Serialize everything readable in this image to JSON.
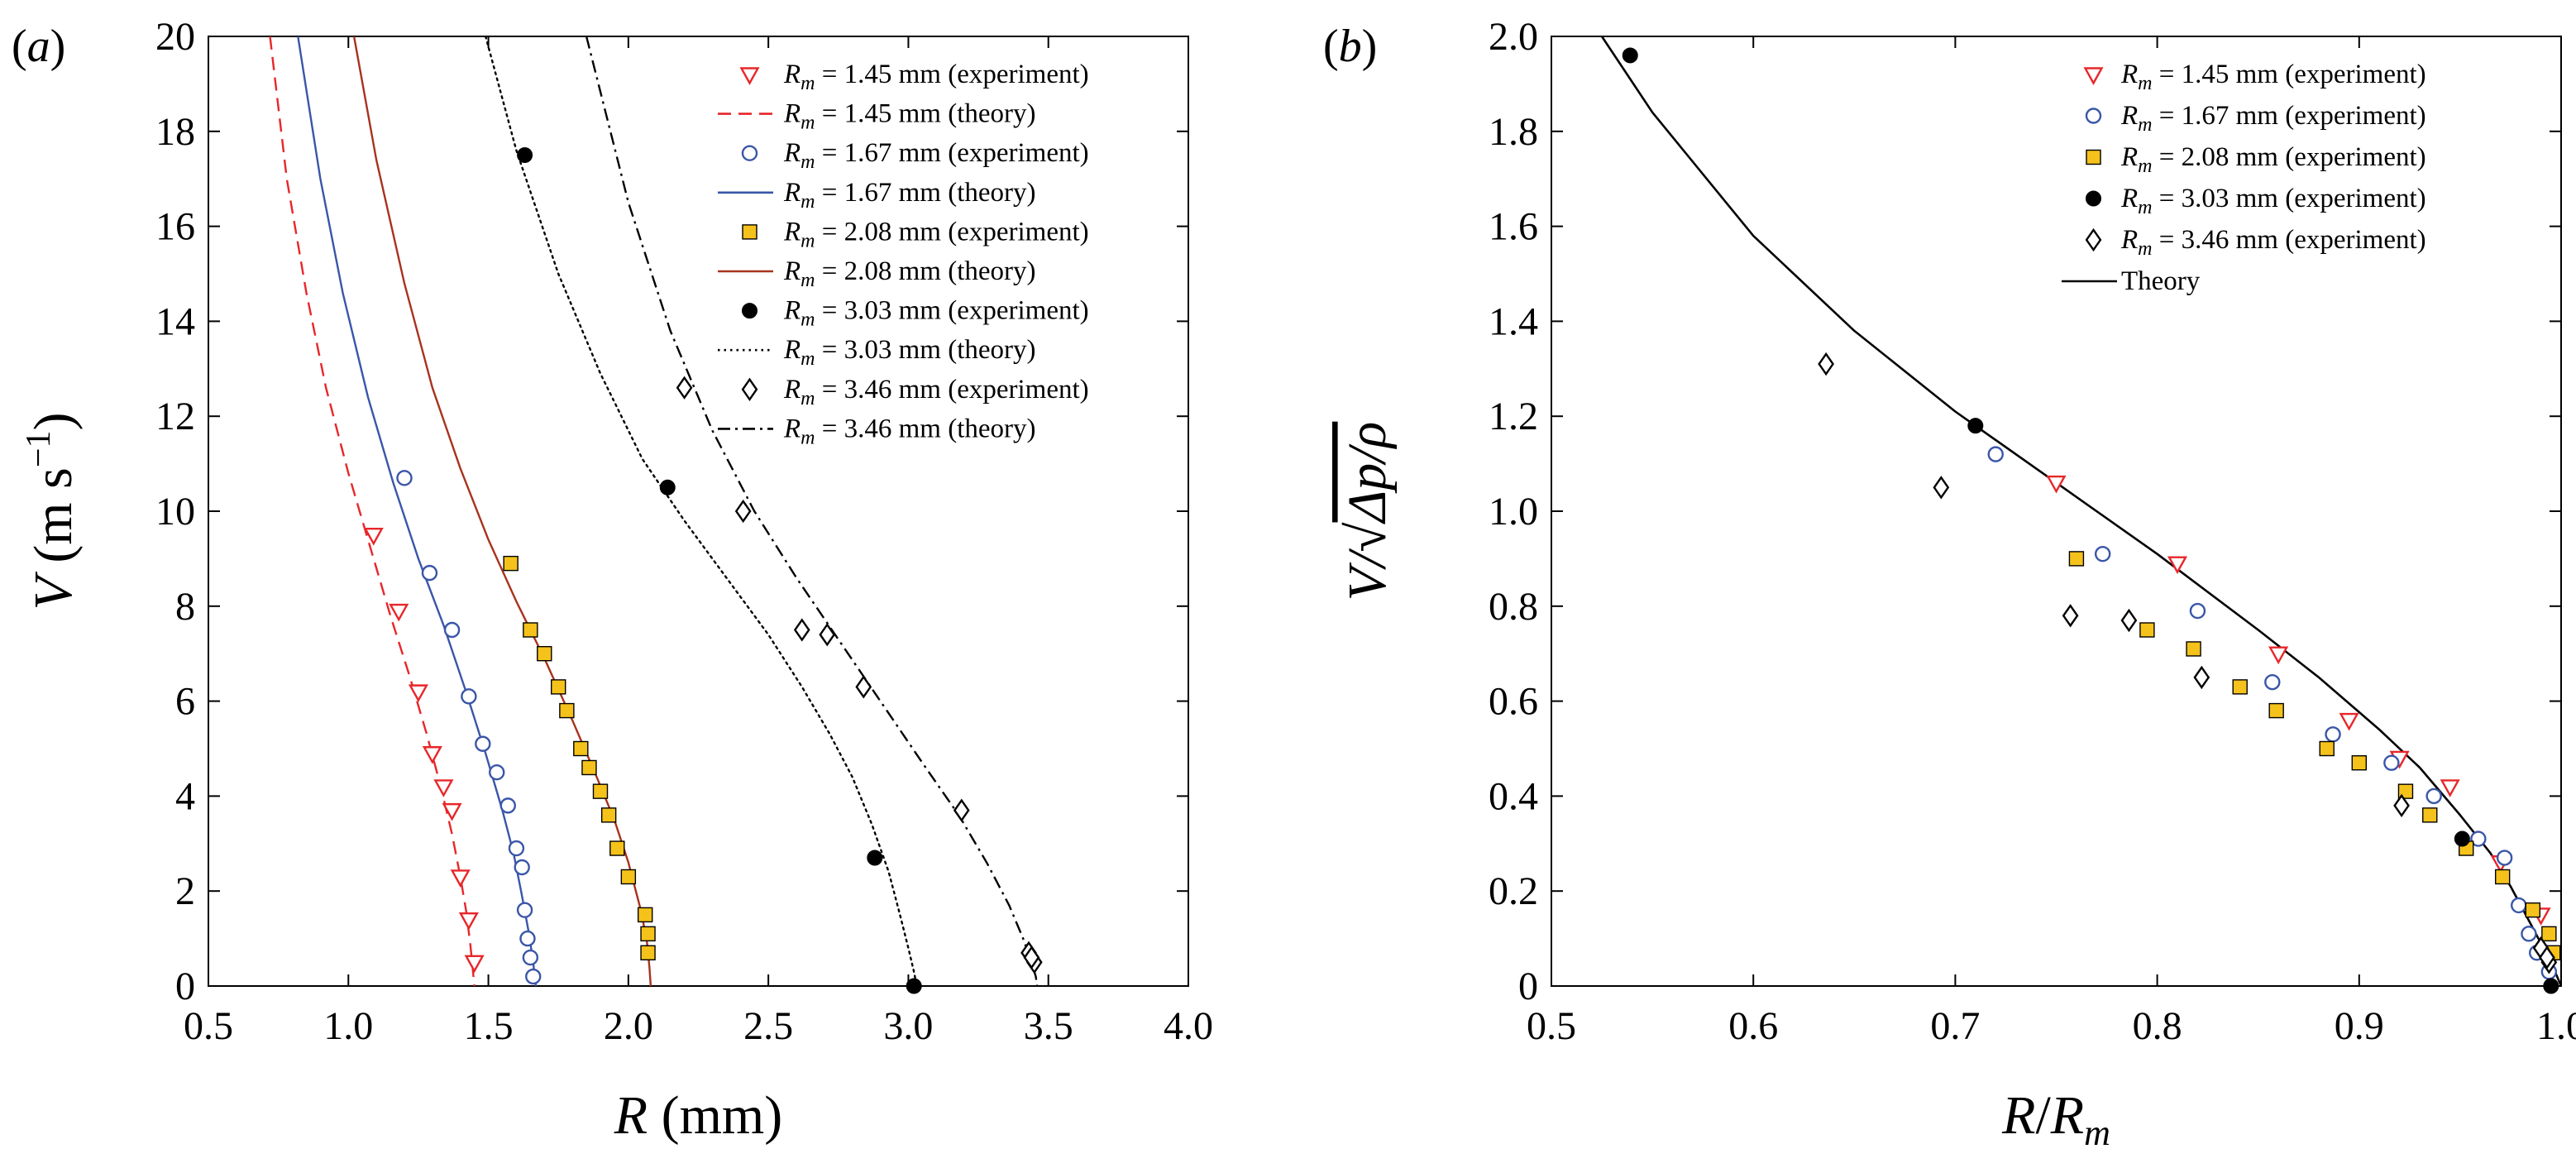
{
  "chart_data": [
    {
      "panel_label": "(a)",
      "type": "scatter",
      "xlabel": {
        "main": "R",
        "unit": "(mm)"
      },
      "ylabel": {
        "main": "V",
        "unit_open": "(m s",
        "unit_exp": "−1",
        "unit_close": ")"
      },
      "xlim": [
        0.5,
        4.0
      ],
      "ylim": [
        0,
        20
      ],
      "x_ticks": [
        0.5,
        1.0,
        1.5,
        2.0,
        2.5,
        3.0,
        3.5,
        4.0
      ],
      "x_tick_labels": [
        "0.5",
        "1.0",
        "1.5",
        "2.0",
        "2.5",
        "3.0",
        "3.5",
        "4.0"
      ],
      "y_ticks": [
        0,
        2,
        4,
        6,
        8,
        10,
        12,
        14,
        16,
        18,
        20
      ],
      "y_tick_labels": [
        "0",
        "2",
        "4",
        "6",
        "8",
        "10",
        "12",
        "14",
        "16",
        "18",
        "20"
      ],
      "legend_position": "top-right",
      "legend": [
        {
          "sym": "R",
          "sub": "m",
          "text": " = 1.45 mm (experiment)",
          "kind": "marker",
          "marker": "triangle-down-open",
          "color": "#e8262a"
        },
        {
          "sym": "R",
          "sub": "m",
          "text": " = 1.45 mm (theory)",
          "kind": "line",
          "dash": "dashed",
          "color": "#e8262a"
        },
        {
          "sym": "R",
          "sub": "m",
          "text": " = 1.67 mm (experiment)",
          "kind": "marker",
          "marker": "circle-open",
          "color": "#3a56a8"
        },
        {
          "sym": "R",
          "sub": "m",
          "text": " = 1.67 mm (theory)",
          "kind": "line",
          "dash": "solid",
          "color": "#3a56a8"
        },
        {
          "sym": "R",
          "sub": "m",
          "text": " = 2.08 mm (experiment)",
          "kind": "marker",
          "marker": "square-filled",
          "color": "#f5c21b"
        },
        {
          "sym": "R",
          "sub": "m",
          "text": " = 2.08 mm (theory)",
          "kind": "line",
          "dash": "solid",
          "color": "#a8321e"
        },
        {
          "sym": "R",
          "sub": "m",
          "text": " = 3.03 mm (experiment)",
          "kind": "marker",
          "marker": "circle-filled",
          "color": "#000000"
        },
        {
          "sym": "R",
          "sub": "m",
          "text": " = 3.03 mm (theory)",
          "kind": "line",
          "dash": "dotted",
          "color": "#000000"
        },
        {
          "sym": "R",
          "sub": "m",
          "text": " = 3.46 mm (experiment)",
          "kind": "marker",
          "marker": "diamond-open",
          "color": "#000000"
        },
        {
          "sym": "R",
          "sub": "m",
          "text": " = 3.46 mm (theory)",
          "kind": "line",
          "dash": "dashdot",
          "color": "#000000"
        }
      ],
      "series": [
        {
          "name": "Rm = 1.45 mm (experiment)",
          "kind": "marker",
          "marker": "triangle-down-open",
          "color": "#e8262a",
          "x": [
            1.09,
            1.18,
            1.25,
            1.3,
            1.34,
            1.37,
            1.4,
            1.43,
            1.45
          ],
          "y": [
            9.5,
            7.9,
            6.2,
            4.9,
            4.2,
            3.7,
            2.3,
            1.4,
            0.5
          ]
        },
        {
          "name": "Rm = 1.45 mm (theory)",
          "kind": "line",
          "dash": "dashed",
          "color": "#e8262a",
          "x": [
            0.72,
            0.78,
            0.85,
            0.92,
            1.0,
            1.08,
            1.15,
            1.22,
            1.28,
            1.33,
            1.37,
            1.4,
            1.42,
            1.435,
            1.445,
            1.45
          ],
          "y": [
            20.0,
            17.0,
            14.6,
            12.6,
            10.8,
            9.2,
            7.8,
            6.5,
            5.3,
            4.2,
            3.2,
            2.3,
            1.6,
            0.9,
            0.3,
            0.0
          ]
        },
        {
          "name": "Rm = 1.67 mm (experiment)",
          "kind": "marker",
          "marker": "circle-open",
          "color": "#3a56a8",
          "x": [
            1.2,
            1.29,
            1.37,
            1.43,
            1.48,
            1.53,
            1.57,
            1.6,
            1.62,
            1.63,
            1.64,
            1.65,
            1.66
          ],
          "y": [
            10.7,
            8.7,
            7.5,
            6.1,
            5.1,
            4.5,
            3.8,
            2.9,
            2.5,
            1.6,
            1.0,
            0.6,
            0.2
          ]
        },
        {
          "name": "Rm = 1.67 mm (theory)",
          "kind": "line",
          "dash": "solid",
          "color": "#3a56a8",
          "x": [
            0.82,
            0.9,
            0.98,
            1.07,
            1.16,
            1.25,
            1.34,
            1.42,
            1.49,
            1.55,
            1.59,
            1.62,
            1.645,
            1.66,
            1.67
          ],
          "y": [
            20.0,
            17.0,
            14.6,
            12.4,
            10.6,
            9.0,
            7.6,
            6.2,
            4.9,
            3.7,
            2.8,
            1.9,
            1.1,
            0.5,
            0.0
          ]
        },
        {
          "name": "Rm = 2.08 mm (experiment)",
          "kind": "marker",
          "marker": "square-filled",
          "color": "#f5c21b",
          "x": [
            1.58,
            1.65,
            1.7,
            1.75,
            1.78,
            1.83,
            1.86,
            1.9,
            1.93,
            1.96,
            2.0,
            2.06,
            2.07,
            2.07
          ],
          "y": [
            8.9,
            7.5,
            7.0,
            6.3,
            5.8,
            5.0,
            4.6,
            4.1,
            3.6,
            2.9,
            2.3,
            1.5,
            1.1,
            0.7
          ]
        },
        {
          "name": "Rm = 2.08 mm (theory)",
          "kind": "line",
          "dash": "solid",
          "color": "#a8321e",
          "x": [
            1.02,
            1.1,
            1.2,
            1.3,
            1.4,
            1.5,
            1.6,
            1.7,
            1.8,
            1.88,
            1.95,
            2.0,
            2.04,
            2.065,
            2.075,
            2.08
          ],
          "y": [
            20.0,
            17.4,
            14.8,
            12.6,
            10.9,
            9.4,
            8.1,
            6.9,
            5.6,
            4.5,
            3.5,
            2.6,
            1.7,
            1.0,
            0.4,
            0.0
          ]
        },
        {
          "name": "Rm = 3.03 mm (experiment)",
          "kind": "marker",
          "marker": "circle-filled",
          "color": "#000000",
          "x": [
            1.63,
            2.14,
            2.88,
            3.02
          ],
          "y": [
            17.5,
            10.5,
            2.7,
            0.0
          ]
        },
        {
          "name": "Rm = 3.03 mm (theory)",
          "kind": "line",
          "dash": "dotted",
          "color": "#000000",
          "x": [
            1.49,
            1.6,
            1.75,
            1.9,
            2.05,
            2.2,
            2.35,
            2.5,
            2.62,
            2.72,
            2.8,
            2.87,
            2.93,
            2.97,
            3.0,
            3.02,
            3.03
          ],
          "y": [
            20.0,
            17.6,
            15.0,
            12.9,
            11.1,
            9.8,
            8.6,
            7.4,
            6.3,
            5.3,
            4.4,
            3.4,
            2.4,
            1.5,
            0.8,
            0.3,
            0.0
          ]
        },
        {
          "name": "Rm = 3.46 mm (experiment)",
          "kind": "marker",
          "marker": "diamond-open",
          "color": "#000000",
          "x": [
            2.2,
            2.41,
            2.62,
            2.71,
            2.84,
            3.19,
            3.43,
            3.45,
            3.44
          ],
          "y": [
            12.6,
            10.0,
            7.5,
            7.4,
            6.3,
            3.7,
            0.7,
            0.5,
            0.6
          ]
        },
        {
          "name": "Rm = 3.46 mm (theory)",
          "kind": "line",
          "dash": "dashdot",
          "color": "#000000",
          "x": [
            1.85,
            2.0,
            2.15,
            2.3,
            2.45,
            2.6,
            2.75,
            2.9,
            3.05,
            3.18,
            3.28,
            3.36,
            3.41,
            3.44,
            3.455,
            3.46
          ],
          "y": [
            20.0,
            16.5,
            13.8,
            11.7,
            10.0,
            8.6,
            7.3,
            6.0,
            4.7,
            3.6,
            2.6,
            1.7,
            1.0,
            0.5,
            0.2,
            0.0
          ]
        }
      ]
    },
    {
      "panel_label": "(b)",
      "type": "scatter",
      "xlabel": {
        "num": "R",
        "den": "R",
        "den_sub": "m"
      },
      "ylabel": {
        "pre": "V/",
        "radicand": "Δp/ρ"
      },
      "xlim": [
        0.5,
        1.0
      ],
      "ylim": [
        0,
        2.0
      ],
      "x_ticks": [
        0.5,
        0.6,
        0.7,
        0.8,
        0.9,
        1.0
      ],
      "x_tick_labels": [
        "0.5",
        "0.6",
        "0.7",
        "0.8",
        "0.9",
        "1.0"
      ],
      "y_ticks": [
        0,
        0.2,
        0.4,
        0.6,
        0.8,
        1.0,
        1.2,
        1.4,
        1.6,
        1.8,
        2.0
      ],
      "y_tick_labels": [
        "0",
        "0.2",
        "0.4",
        "0.6",
        "0.8",
        "1.0",
        "1.2",
        "1.4",
        "1.6",
        "1.8",
        "2.0"
      ],
      "legend_position": "top-right",
      "legend": [
        {
          "sym": "R",
          "sub": "m",
          "text": " = 1.45 mm (experiment)",
          "kind": "marker",
          "marker": "triangle-down-open",
          "color": "#e8262a"
        },
        {
          "sym": "R",
          "sub": "m",
          "text": " = 1.67 mm (experiment)",
          "kind": "marker",
          "marker": "circle-open",
          "color": "#3a56a8"
        },
        {
          "sym": "R",
          "sub": "m",
          "text": " = 2.08 mm (experiment)",
          "kind": "marker",
          "marker": "square-filled",
          "color": "#f5c21b"
        },
        {
          "sym": "R",
          "sub": "m",
          "text": " = 3.03 mm (experiment)",
          "kind": "marker",
          "marker": "circle-filled",
          "color": "#000000"
        },
        {
          "sym": "R",
          "sub": "m",
          "text": " = 3.46 mm (experiment)",
          "kind": "marker",
          "marker": "diamond-open",
          "color": "#000000"
        },
        {
          "sym": "",
          "sub": "",
          "text": "Theory",
          "kind": "line",
          "dash": "solid",
          "color": "#000000"
        }
      ],
      "series": [
        {
          "name": "Rm = 1.45 mm (experiment)",
          "kind": "marker",
          "marker": "triangle-down-open",
          "color": "#e8262a",
          "x": [
            0.75,
            0.81,
            0.86,
            0.895,
            0.92,
            0.945,
            0.97,
            0.99,
            0.995
          ],
          "y": [
            1.06,
            0.89,
            0.7,
            0.56,
            0.48,
            0.42,
            0.26,
            0.15,
            0.06
          ]
        },
        {
          "name": "Rm = 1.67 mm (experiment)",
          "kind": "marker",
          "marker": "circle-open",
          "color": "#3a56a8",
          "x": [
            0.72,
            0.773,
            0.82,
            0.857,
            0.887,
            0.916,
            0.937,
            0.959,
            0.972,
            0.979,
            0.984,
            0.988,
            0.994
          ],
          "y": [
            1.12,
            0.91,
            0.79,
            0.64,
            0.53,
            0.47,
            0.4,
            0.31,
            0.27,
            0.17,
            0.11,
            0.07,
            0.03
          ]
        },
        {
          "name": "Rm = 2.08 mm (experiment)",
          "kind": "marker",
          "marker": "square-filled",
          "color": "#f5c21b",
          "x": [
            0.76,
            0.795,
            0.818,
            0.841,
            0.859,
            0.884,
            0.9,
            0.923,
            0.935,
            0.953,
            0.971,
            0.986,
            0.994,
            0.996
          ],
          "y": [
            0.9,
            0.75,
            0.71,
            0.63,
            0.58,
            0.5,
            0.47,
            0.41,
            0.36,
            0.29,
            0.23,
            0.16,
            0.11,
            0.07
          ]
        },
        {
          "name": "Rm = 3.03 mm (experiment)",
          "kind": "marker",
          "marker": "circle-filled",
          "color": "#000000",
          "x": [
            0.539,
            0.71,
            0.951,
            0.995
          ],
          "y": [
            1.96,
            1.18,
            0.31,
            0.0
          ]
        },
        {
          "name": "Rm = 3.46 mm (experiment)",
          "kind": "marker",
          "marker": "diamond-open",
          "color": "#000000",
          "x": [
            0.636,
            0.693,
            0.757,
            0.786,
            0.822,
            0.921,
            0.99,
            0.994,
            0.993
          ],
          "y": [
            1.31,
            1.05,
            0.78,
            0.77,
            0.65,
            0.38,
            0.08,
            0.05,
            0.06
          ]
        },
        {
          "name": "Theory",
          "kind": "line",
          "dash": "solid",
          "color": "#000000",
          "x": [
            0.525,
            0.55,
            0.6,
            0.65,
            0.7,
            0.75,
            0.8,
            0.85,
            0.88,
            0.91,
            0.93,
            0.95,
            0.965,
            0.975,
            0.985,
            0.99,
            0.995,
            1.0
          ],
          "y": [
            2.0,
            1.84,
            1.58,
            1.38,
            1.21,
            1.06,
            0.91,
            0.75,
            0.65,
            0.54,
            0.46,
            0.36,
            0.28,
            0.21,
            0.13,
            0.09,
            0.05,
            0.0
          ]
        }
      ]
    }
  ]
}
